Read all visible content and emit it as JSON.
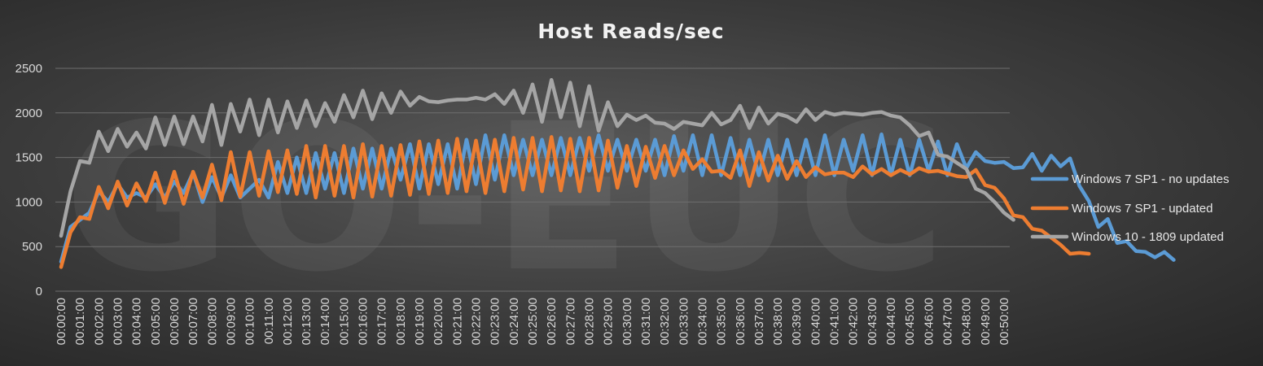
{
  "watermark": "GO-EUC",
  "chart_data": {
    "type": "line",
    "title": "Host Reads/sec",
    "xlabel": "",
    "ylabel": "",
    "ylim": [
      0,
      2500
    ],
    "yticks": [
      0,
      500,
      1000,
      1500,
      2000,
      2500
    ],
    "grid": true,
    "legend_position": "right",
    "x_labels": [
      "00:00:00",
      "00:01:00",
      "00:02:00",
      "00:03:00",
      "00:04:00",
      "00:05:00",
      "00:06:00",
      "00:07:00",
      "00:08:00",
      "00:09:00",
      "00:10:00",
      "00:11:00",
      "00:12:00",
      "00:13:00",
      "00:14:00",
      "00:15:00",
      "00:16:00",
      "00:17:00",
      "00:18:00",
      "00:19:00",
      "00:20:00",
      "00:21:00",
      "00:22:00",
      "00:23:00",
      "00:24:00",
      "00:25:00",
      "00:26:00",
      "00:27:00",
      "00:28:00",
      "00:29:00",
      "00:30:00",
      "00:31:00",
      "00:32:00",
      "00:33:00",
      "00:34:00",
      "00:35:00",
      "00:36:00",
      "00:37:00",
      "00:38:00",
      "00:39:00",
      "00:40:00",
      "00:41:00",
      "00:42:00",
      "00:43:00",
      "00:44:00",
      "00:45:00",
      "00:46:00",
      "00:47:00",
      "00:48:00",
      "00:49:00",
      "00:50:00"
    ],
    "points_per_minute": 2,
    "series": [
      {
        "name": "Windows 7 SP1 - no updates",
        "color": "#5b9bd5",
        "values": [
          330,
          720,
          800,
          880,
          1120,
          1000,
          1200,
          1050,
          1100,
          1050,
          1200,
          1050,
          1230,
          1100,
          1330,
          1000,
          1280,
          1050,
          1300,
          1050,
          1150,
          1250,
          1050,
          1450,
          1100,
          1500,
          1100,
          1550,
          1150,
          1550,
          1100,
          1600,
          1150,
          1600,
          1150,
          1600,
          1250,
          1650,
          1150,
          1650,
          1200,
          1650,
          1150,
          1700,
          1200,
          1750,
          1250,
          1750,
          1300,
          1700,
          1300,
          1700,
          1300,
          1720,
          1300,
          1720,
          1350,
          1750,
          1350,
          1700,
          1350,
          1700,
          1350,
          1700,
          1300,
          1740,
          1350,
          1750,
          1300,
          1750,
          1300,
          1720,
          1300,
          1700,
          1300,
          1700,
          1300,
          1700,
          1300,
          1700,
          1300,
          1750,
          1300,
          1700,
          1350,
          1750,
          1300,
          1760,
          1300,
          1700,
          1300,
          1700,
          1350,
          1680,
          1300,
          1650,
          1380,
          1560,
          1460,
          1440,
          1450,
          1380,
          1390,
          1540,
          1350,
          1520,
          1400,
          1490,
          1180,
          1010,
          720,
          810,
          540,
          560,
          450,
          440,
          380,
          440,
          350
        ]
      },
      {
        "name": "Windows 7 SP1 - updated",
        "color": "#ed7d31",
        "values": [
          270,
          660,
          830,
          810,
          1170,
          930,
          1230,
          960,
          1210,
          1010,
          1330,
          990,
          1340,
          980,
          1340,
          1050,
          1420,
          1020,
          1560,
          1060,
          1560,
          1070,
          1570,
          1110,
          1580,
          1090,
          1630,
          1050,
          1630,
          1070,
          1630,
          1050,
          1650,
          1060,
          1630,
          1070,
          1640,
          1080,
          1680,
          1090,
          1690,
          1100,
          1710,
          1120,
          1690,
          1100,
          1700,
          1120,
          1720,
          1140,
          1720,
          1120,
          1730,
          1130,
          1710,
          1120,
          1720,
          1130,
          1690,
          1160,
          1630,
          1180,
          1620,
          1270,
          1630,
          1300,
          1580,
          1370,
          1480,
          1340,
          1350,
          1270,
          1580,
          1180,
          1560,
          1240,
          1520,
          1260,
          1460,
          1280,
          1390,
          1310,
          1330,
          1330,
          1280,
          1400,
          1310,
          1370,
          1300,
          1360,
          1310,
          1380,
          1340,
          1350,
          1320,
          1290,
          1280,
          1360,
          1190,
          1160,
          1040,
          850,
          830,
          700,
          680,
          600,
          520,
          420,
          430,
          420
        ]
      },
      {
        "name": "Windows 10 - 1809 updated",
        "color": "#a5a5a5",
        "values": [
          620,
          1120,
          1460,
          1440,
          1790,
          1570,
          1820,
          1620,
          1780,
          1600,
          1950,
          1640,
          1960,
          1650,
          1960,
          1680,
          2090,
          1640,
          2100,
          1790,
          2150,
          1750,
          2150,
          1780,
          2130,
          1830,
          2140,
          1850,
          2110,
          1900,
          2200,
          1950,
          2250,
          1930,
          2220,
          2000,
          2240,
          2080,
          2180,
          2130,
          2120,
          2140,
          2150,
          2150,
          2170,
          2150,
          2210,
          2100,
          2250,
          2000,
          2320,
          1900,
          2370,
          1950,
          2340,
          1850,
          2300,
          1800,
          2120,
          1850,
          1980,
          1920,
          1970,
          1890,
          1880,
          1820,
          1900,
          1880,
          1860,
          2000,
          1870,
          1920,
          2080,
          1830,
          2060,
          1880,
          1990,
          1960,
          1900,
          2040,
          1920,
          2010,
          1980,
          2000,
          1990,
          1980,
          2000,
          2010,
          1970,
          1950,
          1860,
          1740,
          1780,
          1530,
          1510,
          1440,
          1370,
          1150,
          1100,
          1000,
          880,
          800
        ]
      }
    ]
  }
}
